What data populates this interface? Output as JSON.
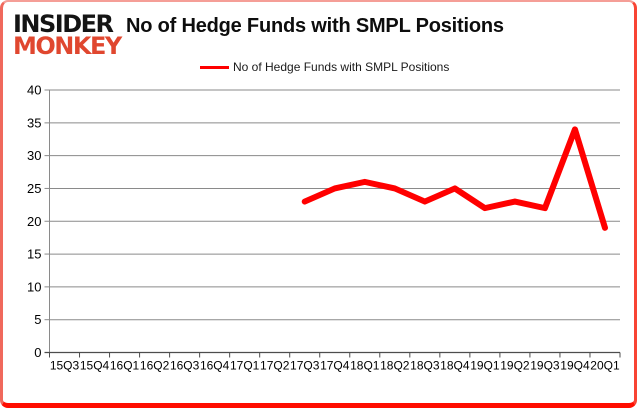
{
  "logo": {
    "line1": "INSIDER",
    "line2": "MONKEY"
  },
  "title": "No of Hedge Funds with SMPL Positions",
  "legend": {
    "label": "No of Hedge Funds with SMPL Positions",
    "swatch_color": "#ff0000"
  },
  "chart_data": {
    "type": "line",
    "title": "No of Hedge Funds with SMPL Positions",
    "categories": [
      "15Q3",
      "15Q4",
      "16Q1",
      "16Q2",
      "16Q3",
      "16Q4",
      "17Q1",
      "17Q2",
      "17Q3",
      "17Q4",
      "18Q1",
      "18Q2",
      "18Q3",
      "18Q4",
      "19Q1",
      "19Q2",
      "19Q3",
      "19Q4",
      "20Q1"
    ],
    "series": [
      {
        "name": "No of Hedge Funds with SMPL Positions",
        "color": "#ff0000",
        "values": [
          null,
          null,
          null,
          null,
          null,
          null,
          null,
          null,
          23,
          25,
          26,
          25,
          23,
          25,
          22,
          23,
          22,
          34,
          19
        ]
      }
    ],
    "xlabel": "",
    "ylabel": "",
    "ylim": [
      0,
      40
    ],
    "ytick_step": 5,
    "grid": true,
    "legend_position": "top",
    "grid_color": "#8a8a8a",
    "axis_color": "#4d4d4d",
    "tick_label_color": "#000000"
  }
}
